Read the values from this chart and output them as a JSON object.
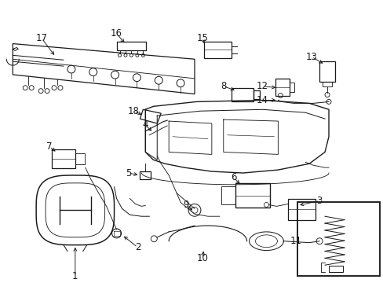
{
  "background_color": "#ffffff",
  "line_color": "#1a1a1a",
  "label_fontsize": 8.5,
  "figsize": [
    4.89,
    3.6
  ],
  "dpi": 100
}
